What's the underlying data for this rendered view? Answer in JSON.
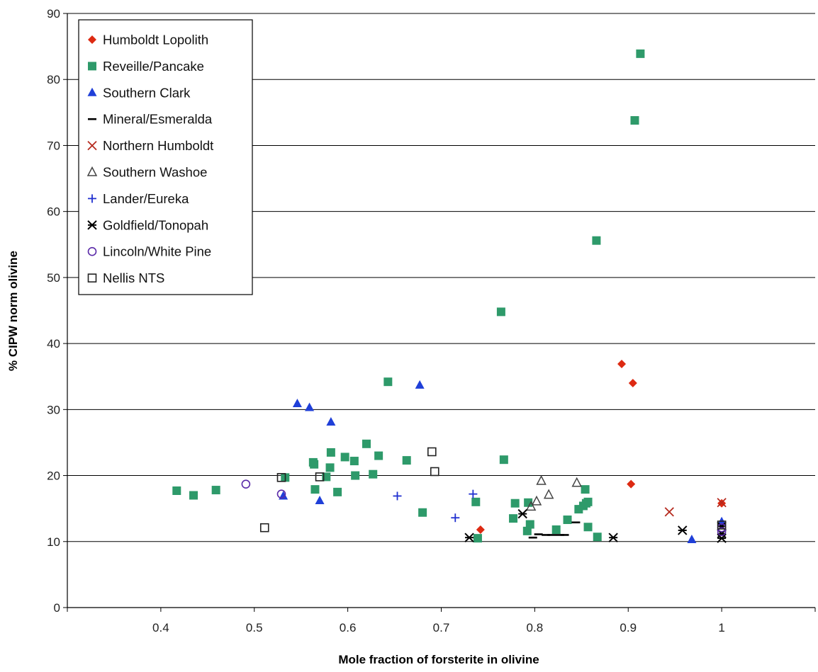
{
  "chart_data": {
    "type": "scatter",
    "title": "",
    "xlabel": "Mole fraction of forsterite in olivine",
    "ylabel": "% CIPW norm olivine",
    "xlim": [
      0.3,
      1.1
    ],
    "ylim": [
      0,
      90
    ],
    "x_ticks": [
      "0.4",
      "0.5",
      "0.6",
      "0.7",
      "0.8",
      "0.9",
      "1"
    ],
    "y_ticks": [
      "0",
      "10",
      "20",
      "30",
      "40",
      "50",
      "60",
      "70",
      "80",
      "90"
    ],
    "grid": "horizontal",
    "legend_position": "top-left",
    "series": [
      {
        "name": "Humboldt Lopolith",
        "marker": "diamond",
        "color": "#dd2a12",
        "points": [
          [
            0.742,
            11.8
          ],
          [
            0.893,
            36.9
          ],
          [
            0.905,
            34.0
          ],
          [
            0.903,
            18.7
          ],
          [
            1.0,
            15.8
          ]
        ]
      },
      {
        "name": "Reveille/Pancake",
        "marker": "square",
        "color": "#2e9a6a",
        "points": [
          [
            0.417,
            17.7
          ],
          [
            0.435,
            17.0
          ],
          [
            0.459,
            17.8
          ],
          [
            0.533,
            19.7
          ],
          [
            0.563,
            22.0
          ],
          [
            0.564,
            21.7
          ],
          [
            0.565,
            17.9
          ],
          [
            0.577,
            19.8
          ],
          [
            0.581,
            21.2
          ],
          [
            0.582,
            23.5
          ],
          [
            0.589,
            17.5
          ],
          [
            0.597,
            22.8
          ],
          [
            0.607,
            22.2
          ],
          [
            0.608,
            20.0
          ],
          [
            0.62,
            24.8
          ],
          [
            0.627,
            20.2
          ],
          [
            0.633,
            23.0
          ],
          [
            0.643,
            34.2
          ],
          [
            0.663,
            22.3
          ],
          [
            0.68,
            14.4
          ],
          [
            0.737,
            16.0
          ],
          [
            0.739,
            10.5
          ],
          [
            0.764,
            44.8
          ],
          [
            0.767,
            22.4
          ],
          [
            0.777,
            13.5
          ],
          [
            0.779,
            15.8
          ],
          [
            0.792,
            11.6
          ],
          [
            0.793,
            15.9
          ],
          [
            0.795,
            12.6
          ],
          [
            0.823,
            11.8
          ],
          [
            0.835,
            13.3
          ],
          [
            0.847,
            14.9
          ],
          [
            0.852,
            15.4
          ],
          [
            0.854,
            17.9
          ],
          [
            0.855,
            15.8
          ],
          [
            0.857,
            16.0
          ],
          [
            0.857,
            12.2
          ],
          [
            0.866,
            55.6
          ],
          [
            0.867,
            10.7
          ],
          [
            0.907,
            73.8
          ],
          [
            0.913,
            83.9
          ]
        ]
      },
      {
        "name": "Southern Clark",
        "marker": "triangle",
        "color": "#1f3fd8",
        "points": [
          [
            0.531,
            16.9
          ],
          [
            0.546,
            30.9
          ],
          [
            0.559,
            30.3
          ],
          [
            0.57,
            16.2
          ],
          [
            0.582,
            28.1
          ],
          [
            0.677,
            33.7
          ],
          [
            0.968,
            10.3
          ],
          [
            1.0,
            13.0
          ]
        ]
      },
      {
        "name": "Mineral/Esmeralda",
        "marker": "dash",
        "color": "#000000",
        "points": [
          [
            0.798,
            10.6
          ],
          [
            0.804,
            11.1
          ],
          [
            0.812,
            11.0
          ],
          [
            0.818,
            11.0
          ],
          [
            0.827,
            11.0
          ],
          [
            0.832,
            11.0
          ],
          [
            0.844,
            12.9
          ]
        ]
      },
      {
        "name": "Northern Humboldt",
        "marker": "x",
        "color": "#b52a1e",
        "points": [
          [
            0.944,
            14.5
          ],
          [
            1.0,
            15.9
          ]
        ]
      },
      {
        "name": "Southern Washoe",
        "marker": "triangle-open",
        "color": "#444444",
        "points": [
          [
            0.796,
            15.3
          ],
          [
            0.802,
            16.1
          ],
          [
            0.807,
            19.2
          ],
          [
            0.815,
            17.1
          ],
          [
            0.845,
            18.9
          ]
        ]
      },
      {
        "name": "Lander/Eureka",
        "marker": "plus",
        "color": "#2030d0",
        "points": [
          [
            0.653,
            16.9
          ],
          [
            0.715,
            13.6
          ],
          [
            0.734,
            17.2
          ]
        ]
      },
      {
        "name": "Goldfield/Tonopah",
        "marker": "asterisk",
        "color": "#000000",
        "points": [
          [
            0.73,
            10.6
          ],
          [
            0.787,
            14.2
          ],
          [
            0.884,
            10.6
          ],
          [
            0.958,
            11.7
          ],
          [
            1.0,
            10.5
          ],
          [
            1.0,
            11.2
          ],
          [
            1.0,
            12.3
          ]
        ]
      },
      {
        "name": "Lincoln/White Pine",
        "marker": "circle-open",
        "color": "#5a2aa8",
        "points": [
          [
            0.491,
            18.7
          ],
          [
            0.529,
            17.2
          ],
          [
            1.0,
            11.5
          ],
          [
            1.0,
            12.1
          ]
        ]
      },
      {
        "name": "Nellis NTS",
        "marker": "square-open",
        "color": "#222222",
        "points": [
          [
            0.511,
            12.1
          ],
          [
            0.529,
            19.7
          ],
          [
            0.57,
            19.8
          ],
          [
            0.69,
            23.6
          ],
          [
            0.693,
            20.6
          ],
          [
            1.0,
            12.5
          ]
        ]
      }
    ]
  }
}
